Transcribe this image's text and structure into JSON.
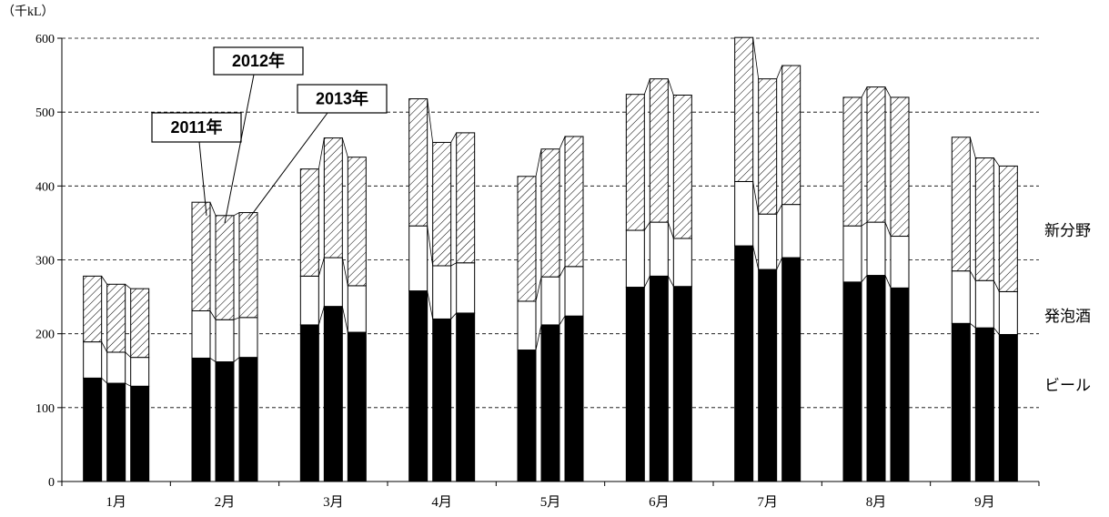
{
  "chart_data": {
    "type": "bar",
    "stacked": true,
    "unit_label": "（千kL）",
    "ylim": [
      0,
      600
    ],
    "yticks": [
      0,
      100,
      200,
      300,
      400,
      500,
      600
    ],
    "grid": true,
    "categories": [
      "1月",
      "2月",
      "3月",
      "4月",
      "5月",
      "6月",
      "7月",
      "8月",
      "9月"
    ],
    "years": [
      "2011年",
      "2012年",
      "2013年"
    ],
    "series": [
      {
        "name": "ビール",
        "fill": "#000000",
        "values": [
          [
            140,
            133,
            129
          ],
          [
            167,
            162,
            168
          ],
          [
            212,
            237,
            202
          ],
          [
            258,
            220,
            228
          ],
          [
            178,
            212,
            224
          ],
          [
            263,
            278,
            264
          ],
          [
            319,
            287,
            303
          ],
          [
            270,
            279,
            262
          ],
          [
            214,
            208,
            199
          ]
        ]
      },
      {
        "name": "発泡酒",
        "fill": "#ffffff",
        "values": [
          [
            49,
            42,
            39
          ],
          [
            64,
            57,
            54
          ],
          [
            66,
            66,
            63
          ],
          [
            88,
            72,
            68
          ],
          [
            66,
            65,
            67
          ],
          [
            77,
            73,
            65
          ],
          [
            87,
            75,
            72
          ],
          [
            76,
            72,
            70
          ],
          [
            71,
            64,
            58
          ]
        ]
      },
      {
        "name": "新分野",
        "fill": "hatch",
        "values": [
          [
            89,
            92,
            93
          ],
          [
            147,
            141,
            142
          ],
          [
            145,
            162,
            174
          ],
          [
            172,
            167,
            176
          ],
          [
            169,
            173,
            176
          ],
          [
            184,
            194,
            194
          ],
          [
            195,
            183,
            188
          ],
          [
            174,
            183,
            188
          ],
          [
            181,
            166,
            170
          ]
        ]
      }
    ],
    "labels": {
      "series_right": [
        "新分野",
        "発泡酒",
        "ビール"
      ]
    }
  }
}
